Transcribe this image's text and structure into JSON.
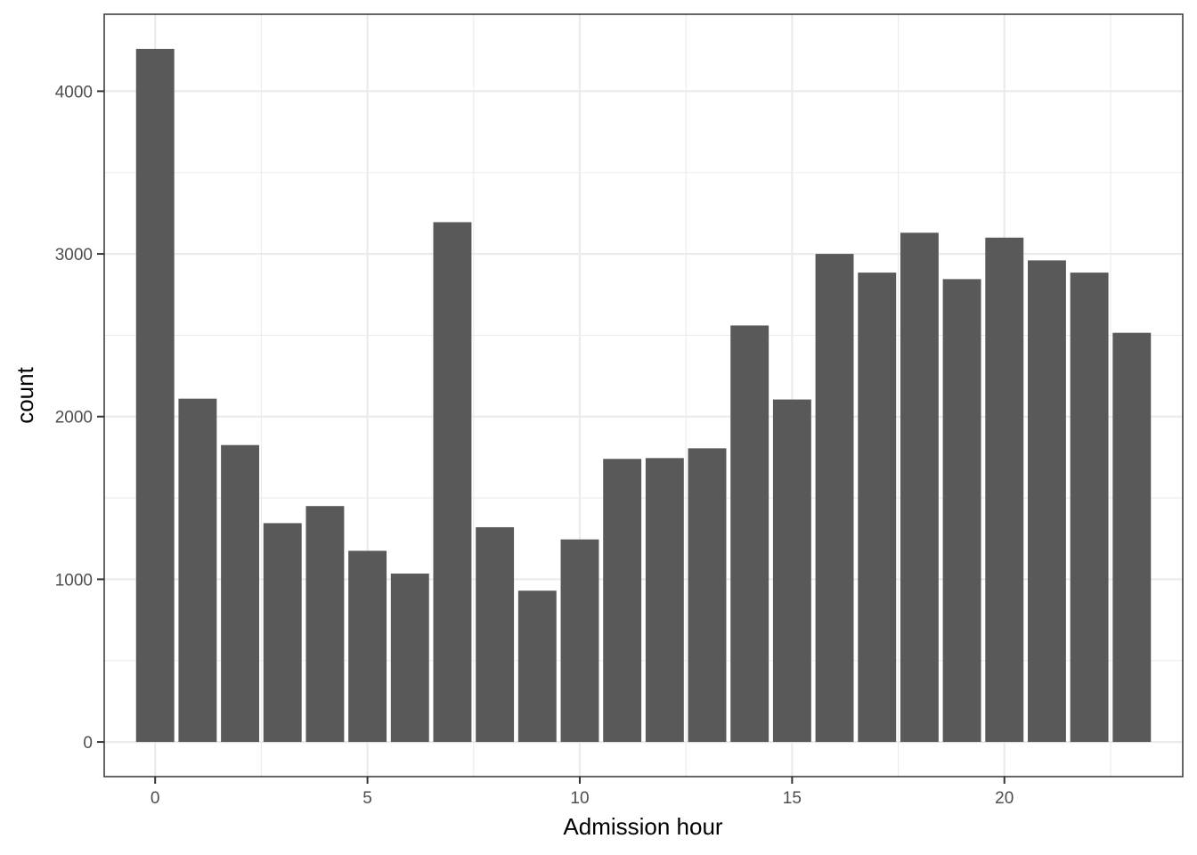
{
  "chart_data": {
    "type": "bar",
    "xlabel": "Admission hour",
    "ylabel": "count",
    "x": [
      0,
      1,
      2,
      3,
      4,
      5,
      6,
      7,
      8,
      9,
      10,
      11,
      12,
      13,
      14,
      15,
      16,
      17,
      18,
      19,
      20,
      21,
      22,
      23
    ],
    "values": [
      4260,
      2110,
      1825,
      1345,
      1450,
      1175,
      1035,
      3195,
      1320,
      930,
      1245,
      1740,
      1745,
      1805,
      2560,
      2105,
      3000,
      2885,
      3130,
      2845,
      3100,
      2960,
      2885,
      2515
    ],
    "xlim": [
      -1.2,
      24.2
    ],
    "ylim": [
      -213,
      4473
    ],
    "x_ticks": [
      0,
      5,
      10,
      15,
      20
    ],
    "y_ticks": [
      0,
      1000,
      2000,
      3000,
      4000
    ],
    "x_tick_labels": [
      "0",
      "5",
      "10",
      "15",
      "20"
    ],
    "y_tick_labels": [
      "0",
      "1000",
      "2000",
      "3000",
      "4000"
    ],
    "bar_color": "#595959",
    "grid": true,
    "theme": "bw"
  }
}
